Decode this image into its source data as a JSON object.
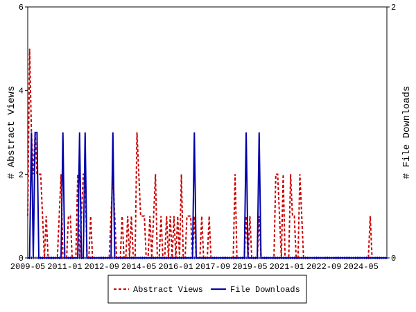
{
  "chart_data": {
    "type": "line",
    "y_label": "# Abstract Views",
    "y2_label": "# File Downloads",
    "categories": [
      "2009-05",
      null,
      null,
      null,
      null,
      null,
      null,
      null,
      null,
      null,
      null,
      null,
      null,
      null,
      null,
      null,
      null,
      null,
      null,
      null,
      "2011-01",
      null,
      null,
      null,
      null,
      null,
      null,
      null,
      null,
      null,
      null,
      null,
      null,
      null,
      null,
      null,
      null,
      null,
      null,
      null,
      "2012-09",
      null,
      null,
      null,
      null,
      null,
      null,
      null,
      null,
      null,
      null,
      null,
      null,
      null,
      null,
      null,
      null,
      null,
      null,
      null,
      "2014-05",
      null,
      null,
      null,
      null,
      null,
      null,
      null,
      null,
      null,
      null,
      null,
      null,
      null,
      null,
      null,
      null,
      null,
      null,
      null,
      "2016-01",
      null,
      null,
      null,
      null,
      null,
      null,
      null,
      null,
      null,
      null,
      null,
      null,
      null,
      null,
      null,
      null,
      null,
      null,
      null,
      "2017-09",
      null,
      null,
      null,
      null,
      null,
      null,
      null,
      null,
      null,
      null,
      null,
      null,
      null,
      null,
      null,
      null,
      null,
      null,
      null,
      "2019-05",
      null,
      null,
      null,
      null,
      null,
      null,
      null,
      null,
      null,
      null,
      null,
      null,
      null,
      null,
      null,
      null,
      null,
      null,
      null,
      "2021-01",
      null,
      null,
      null,
      null,
      null,
      null,
      null,
      null,
      null,
      null,
      null,
      null,
      null,
      null,
      null,
      null,
      null,
      null,
      null,
      "2022-09",
      null,
      null,
      null,
      null,
      null,
      null,
      null,
      null,
      null,
      null,
      null,
      null,
      null,
      null,
      null,
      null,
      null,
      null,
      null,
      "2024-05",
      null,
      null,
      null,
      null,
      null,
      null,
      null,
      null,
      null,
      null,
      null,
      null,
      null,
      null
    ],
    "series": [
      {
        "name": "Abstract Views",
        "color": "#cc0000",
        "dashed": true,
        "values": [
          1,
          5,
          3,
          2,
          3,
          2,
          2,
          2,
          1,
          0,
          1,
          0,
          0,
          0,
          0,
          0,
          0,
          1,
          2,
          0,
          0,
          0,
          1,
          1,
          0,
          0,
          0,
          2,
          0,
          1,
          2,
          2,
          0,
          0,
          1,
          0,
          0,
          0,
          0,
          0,
          0,
          0,
          0,
          0,
          0,
          1,
          2,
          1,
          0,
          0,
          0,
          1,
          0,
          0,
          1,
          0,
          1,
          0,
          0,
          3,
          2,
          1,
          1,
          1,
          0,
          0,
          1,
          0,
          1,
          2,
          0,
          0,
          1,
          0,
          0,
          1,
          0,
          1,
          0,
          1,
          0,
          1,
          0,
          2,
          0,
          0,
          1,
          1,
          1,
          0,
          1,
          0,
          0,
          0,
          1,
          0,
          0,
          0,
          1,
          0,
          0,
          0,
          0,
          0,
          0,
          0,
          0,
          0,
          0,
          0,
          0,
          0,
          2,
          0,
          0,
          0,
          0,
          0,
          1,
          0,
          1,
          0,
          0,
          0,
          0,
          1,
          0,
          0,
          0,
          0,
          0,
          0,
          0,
          0,
          2,
          2,
          1,
          0,
          2,
          0,
          0,
          0,
          2,
          1,
          1,
          0,
          0,
          2,
          1,
          0,
          0,
          0,
          0,
          0,
          0,
          0,
          0,
          0,
          0,
          0,
          0,
          0,
          0,
          0,
          0,
          0,
          0,
          0,
          0,
          0,
          0,
          0,
          0,
          0,
          0,
          0,
          0,
          0,
          0,
          0,
          0,
          0,
          0,
          0,
          0,
          1,
          0,
          0,
          0,
          0,
          0,
          0,
          0,
          0,
          0
        ]
      },
      {
        "name": "File Downloads",
        "color": "#0000aa",
        "axis": "y2",
        "values": [
          0,
          0,
          1,
          0,
          1,
          1,
          0,
          0,
          0,
          0,
          0,
          0,
          0,
          0,
          0,
          0,
          0,
          0,
          0,
          1,
          0,
          0,
          0,
          0,
          0,
          0,
          0,
          0,
          1,
          0,
          0,
          1,
          0,
          0,
          0,
          0,
          0,
          0,
          0,
          0,
          0,
          0,
          0,
          0,
          0,
          0,
          1,
          0,
          0,
          0,
          0,
          0,
          0,
          0,
          0,
          0,
          0,
          0,
          0,
          0,
          0,
          0,
          0,
          0,
          0,
          0,
          0,
          0,
          0,
          0,
          0,
          0,
          0,
          0,
          0,
          0,
          0,
          0,
          0,
          0,
          0,
          0,
          0,
          0,
          0,
          0,
          0,
          0,
          0,
          0,
          1,
          0,
          0,
          0,
          0,
          0,
          0,
          0,
          0,
          0,
          0,
          0,
          0,
          0,
          0,
          0,
          0,
          0,
          0,
          0,
          0,
          0,
          0,
          0,
          0,
          0,
          0,
          0,
          1,
          0,
          0,
          0,
          0,
          0,
          0,
          1,
          0,
          0,
          0,
          0,
          0,
          0,
          0,
          0,
          0,
          0,
          0,
          0,
          0,
          0,
          0,
          0,
          0,
          0,
          0,
          0,
          0,
          0,
          0,
          0,
          0,
          0,
          0,
          0,
          0,
          0,
          0,
          0,
          0,
          0,
          0,
          0,
          0,
          0,
          0,
          0,
          0,
          0,
          0,
          0,
          0,
          0,
          0,
          0,
          0,
          0,
          0,
          0,
          0,
          0,
          0,
          0,
          0,
          0,
          0,
          0,
          0,
          0,
          0,
          0,
          0,
          0,
          0,
          0,
          0
        ]
      }
    ],
    "ylim": [
      0,
      6
    ],
    "yticks": [
      0,
      2,
      4,
      6
    ],
    "y2lim": [
      0,
      2
    ],
    "y2ticks": [
      0,
      2
    ],
    "legend": "bottom"
  }
}
